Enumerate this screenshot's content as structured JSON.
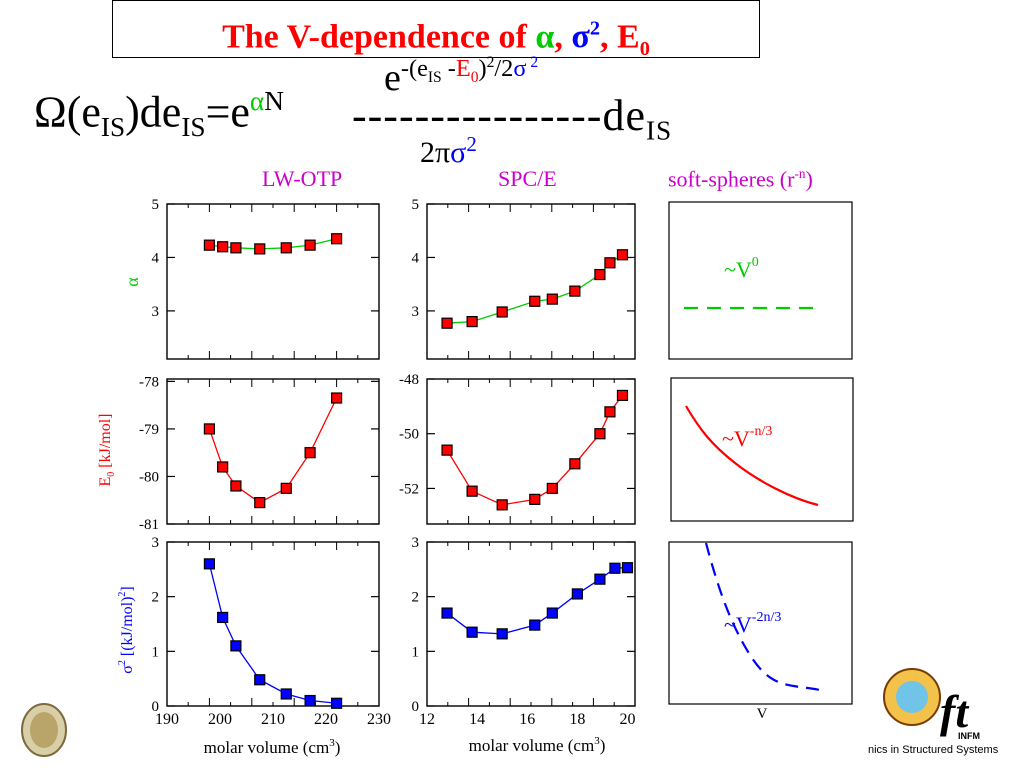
{
  "title": {
    "prefix": "The V-dependence of ",
    "alpha": "α",
    "sep1": ", ",
    "sigma": "σ",
    "sigma_exp": "2",
    "sep2": ", ",
    "e": "E",
    "e_sub": "0"
  },
  "equation": {
    "omega": "Ω",
    "paren_e": "(e",
    "is1": "IS",
    "de": ")de",
    "is2": "IS",
    "eq": "=e",
    "alpha": "α",
    "n": "N",
    "dashes": "----------------",
    "tail": "de",
    "tail_sub": "IS",
    "num_e": "e",
    "num_exp_a": "-(e",
    "num_is": "IS",
    "num_minus": " -",
    "num_E": "E",
    "num_zero": "0",
    "num_close": ")",
    "num_2": "2",
    "num_over": "/2",
    "num_sigma": "σ",
    "num_sigma_exp": " 2",
    "den_2pi": "2π",
    "den_sigma": "σ",
    "den_exp": "2"
  },
  "columns": [
    "LW-OTP",
    "SPC/E",
    "soft-spheres (r"
  ],
  "soft_sphere_exp": "-n",
  "soft_sphere_close": ")",
  "ylabels": {
    "alpha": "α",
    "e0": "E",
    "e0_sub": "0",
    "e0_unit": " [kJ/mol]",
    "sigma": "σ",
    "sigma_exp": "2",
    "sigma_unit": "  [(kJ/mol)",
    "sigma_unit_exp": "2",
    "sigma_unit_close": "]"
  },
  "xlabel": "molar volume (cm",
  "xlabel_exp": "3",
  "xlabel_close": ")",
  "v_label": "V",
  "annotations": {
    "v0": "~V",
    "v0_exp": "0",
    "vn3": "~V",
    "vn3_exp": "-n/3",
    "v2n3": "~V",
    "v2n3_exp": "-2n/3"
  },
  "logo_text": "nics in Structured Systems",
  "logo_brand": "ft",
  "logo_sub": "INFM",
  "colors": {
    "alpha": "#00cc00",
    "e0": "#ff0000",
    "sigma": "#0000ff",
    "title": "#ff0000",
    "column": "#cc00cc"
  },
  "chart_data": [
    {
      "type": "scatter",
      "panel": "LW-OTP alpha",
      "x": [
        198,
        200.5,
        203,
        207.5,
        212.5,
        217,
        222
      ],
      "y": [
        4.23,
        4.2,
        4.18,
        4.16,
        4.18,
        4.23,
        4.35
      ],
      "xlim": [
        190,
        230
      ],
      "ylim": [
        2.1,
        5
      ],
      "yticks": [
        3,
        4,
        5
      ],
      "color": "#00cc00",
      "marker_color": "#ff0000"
    },
    {
      "type": "scatter",
      "panel": "LW-OTP E0",
      "x": [
        198,
        200.5,
        203,
        207.5,
        212.5,
        217,
        222
      ],
      "y": [
        -79,
        -79.8,
        -80.2,
        -80.55,
        -80.25,
        -79.5,
        -78.35
      ],
      "xlim": [
        190,
        230
      ],
      "ylim": [
        -81,
        -77.95
      ],
      "yticks": [
        -78,
        -79,
        -80,
        -81
      ],
      "color": "#ff0000"
    },
    {
      "type": "scatter",
      "panel": "LW-OTP sigma2",
      "x": [
        198,
        200.5,
        203,
        207.5,
        212.5,
        217,
        222
      ],
      "y": [
        2.6,
        1.62,
        1.1,
        0.48,
        0.22,
        0.1,
        0.05
      ],
      "xlim": [
        190,
        230
      ],
      "ylim": [
        0,
        3
      ],
      "yticks": [
        0,
        1,
        2,
        3
      ],
      "xticks": [
        190,
        200,
        210,
        220,
        230
      ],
      "color": "#0000ff"
    },
    {
      "type": "scatter",
      "panel": "SPC/E alpha",
      "x": [
        12.8,
        13.8,
        15,
        16.3,
        17,
        17.9,
        18.9,
        19.3,
        19.8
      ],
      "y": [
        2.77,
        2.8,
        2.98,
        3.18,
        3.22,
        3.37,
        3.68,
        3.9,
        4.05
      ],
      "xlim": [
        12,
        20.3
      ],
      "ylim": [
        2.1,
        5
      ],
      "yticks": [
        3,
        4,
        5
      ],
      "color": "#00cc00",
      "marker_color": "#ff0000"
    },
    {
      "type": "scatter",
      "panel": "SPC/E E0",
      "x": [
        12.8,
        13.8,
        15,
        16.3,
        17,
        17.9,
        18.9,
        19.3,
        19.8
      ],
      "y": [
        -50.6,
        -52.1,
        -52.6,
        -52.4,
        -52,
        -51.1,
        -50,
        -49.2,
        -48.6
      ],
      "xlim": [
        12,
        20.3
      ],
      "ylim": [
        -53.3,
        -48
      ],
      "yticks": [
        -48,
        -50,
        -52
      ],
      "color": "#ff0000"
    },
    {
      "type": "scatter",
      "panel": "SPC/E sigma2",
      "x": [
        12.8,
        13.8,
        15,
        16.3,
        17,
        18,
        18.9,
        19.5,
        20
      ],
      "y": [
        1.7,
        1.35,
        1.32,
        1.48,
        1.7,
        2.05,
        2.32,
        2.52,
        2.53
      ],
      "xlim": [
        12,
        20.3
      ],
      "ylim": [
        0,
        3
      ],
      "yticks": [
        0,
        1,
        2,
        3
      ],
      "xticks": [
        12,
        14,
        16,
        18,
        20
      ],
      "color": "#0000ff"
    }
  ]
}
